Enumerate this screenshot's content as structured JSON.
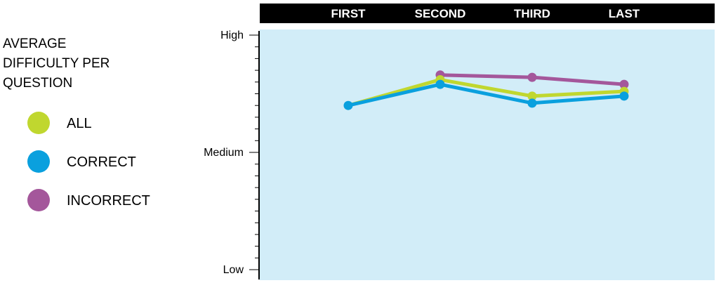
{
  "chart_data": {
    "type": "line",
    "title_lines": [
      "AVERAGE",
      "DIFFICULTY PER",
      "QUESTION"
    ],
    "categories": [
      "FIRST",
      "SECOND",
      "THIRD",
      "LAST"
    ],
    "y_tick_labels": [
      {
        "label": "High",
        "value": 1.0
      },
      {
        "label": "Medium",
        "value": 0.5
      },
      {
        "label": "Low",
        "value": 0.0
      }
    ],
    "ylim": [
      0,
      1
    ],
    "grid": false,
    "legend_position": "left",
    "plot_background": "#d2edf8",
    "header_background": "#000000",
    "series": [
      {
        "name": "ALL",
        "color": "#c0d72f",
        "values": [
          null,
          0.81,
          0.74,
          0.76
        ]
      },
      {
        "name": "CORRECT",
        "color": "#0aa0de",
        "values": [
          0.7,
          0.79,
          0.71,
          0.74
        ]
      },
      {
        "name": "INCORRECT",
        "color": "#a4579b",
        "values": [
          null,
          0.83,
          0.82,
          0.79
        ]
      }
    ]
  }
}
